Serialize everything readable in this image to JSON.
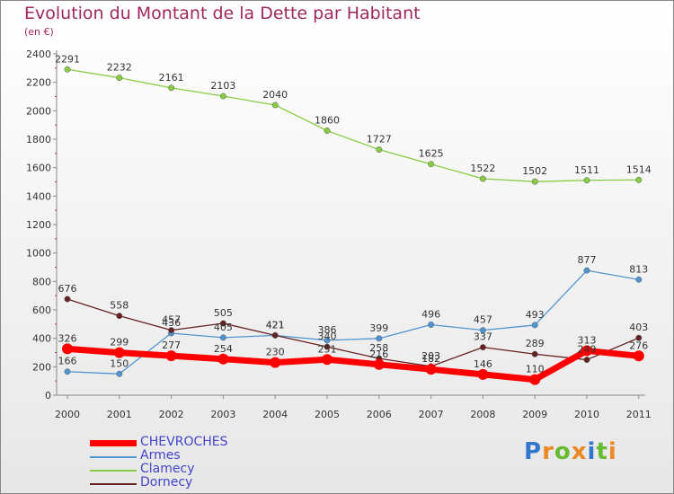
{
  "chart_data": {
    "type": "line",
    "title": "Evolution du Montant de la Dette par Habitant",
    "subtitle": "(en €)",
    "categories": [
      "2000",
      "2001",
      "2002",
      "2003",
      "2004",
      "2005",
      "2006",
      "2007",
      "2008",
      "2009",
      "2010",
      "2011"
    ],
    "ylim": [
      0,
      2400
    ],
    "y_ticks": [
      "0",
      "200",
      "400",
      "600",
      "800",
      "1000",
      "1200",
      "1400",
      "1600",
      "1800",
      "2000",
      "2200",
      "2400"
    ],
    "grid": false,
    "legend_position": "bottom-left",
    "series": [
      {
        "name": "CHEVROCHES",
        "color": "#ff0000",
        "values": [
          326,
          299,
          277,
          254,
          230,
          251,
          216,
          182,
          146,
          110,
          313,
          276
        ],
        "labels": [
          "326",
          "299",
          "277",
          "254",
          "230",
          "251",
          "216",
          "182",
          "146",
          "110",
          "313",
          "276"
        ]
      },
      {
        "name": "Armes",
        "color": "#4f95d2",
        "values": [
          166,
          150,
          436,
          405,
          421,
          386,
          399,
          496,
          457,
          493,
          877,
          813
        ],
        "labels": [
          "166",
          "150",
          "436",
          "405",
          "421",
          "386",
          "399",
          "496",
          "457",
          "493",
          "877",
          "813"
        ]
      },
      {
        "name": "Clamecy",
        "color": "#88cc44",
        "values": [
          2291,
          2232,
          2161,
          2103,
          2040,
          1860,
          1727,
          1625,
          1522,
          1502,
          1511,
          1514
        ],
        "labels": [
          "2291",
          "2232",
          "2161",
          "2103",
          "2040",
          "1860",
          "1727",
          "1625",
          "1522",
          "1502",
          "1511",
          "1514"
        ]
      },
      {
        "name": "Dornecy",
        "color": "#662222",
        "values": [
          676,
          558,
          457,
          505,
          421,
          340,
          258,
          203,
          337,
          289,
          249,
          403
        ],
        "labels": [
          "676",
          "558",
          "457",
          "505",
          "421",
          "340",
          "258",
          "203",
          "337",
          "289",
          "249",
          "403"
        ]
      }
    ]
  },
  "brand": {
    "letters": [
      "P",
      "r",
      "o",
      "x",
      "i",
      "t",
      "i"
    ],
    "colors": [
      "#3377cc",
      "#ee8822",
      "#66bb33",
      "#ee8822",
      "#3377cc",
      "#66bb33",
      "#ee8822"
    ]
  }
}
